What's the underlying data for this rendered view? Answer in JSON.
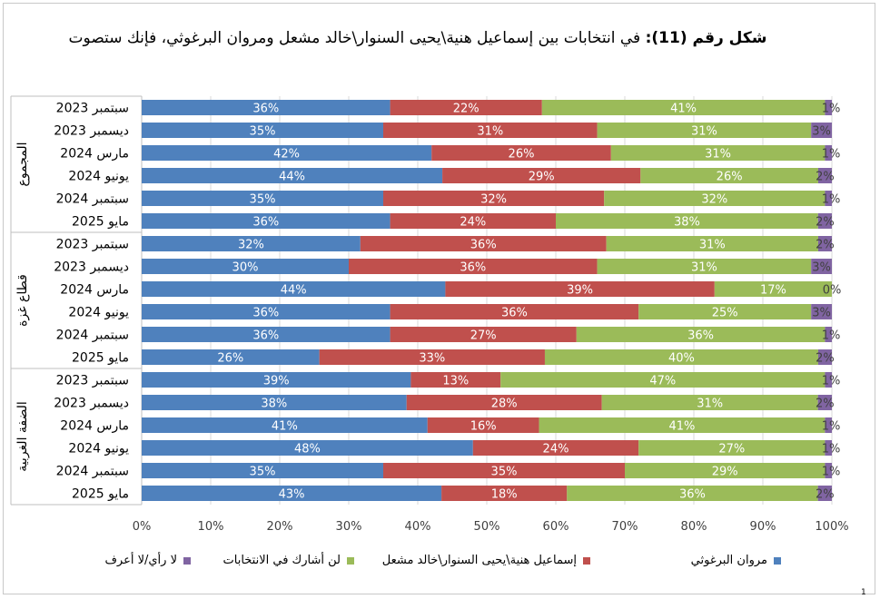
{
  "title": {
    "lead": "شكل رقم (11):",
    "text": "في انتخابات بين إسماعيل هنية\\يحيى السنوار\\خالد مشعل ومروان البرغوثي، فإنك ستصوت"
  },
  "page_number": "1",
  "chart_data": {
    "type": "bar",
    "orientation": "horizontal",
    "stacked": "percent",
    "xlim": [
      0,
      100
    ],
    "x_ticks": [
      "0%",
      "10%",
      "20%",
      "30%",
      "40%",
      "50%",
      "60%",
      "70%",
      "80%",
      "90%",
      "100%"
    ],
    "grid": true,
    "legend_position": "bottom",
    "groups": [
      {
        "name": "المجموع",
        "rows": [
          {
            "label": "سبتمبر 2023",
            "values": [
              36,
              22,
              41,
              1
            ]
          },
          {
            "label": "ديسمبر 2023",
            "values": [
              35,
              31,
              31,
              3
            ]
          },
          {
            "label": "مارس 2024",
            "values": [
              42,
              26,
              31,
              1
            ]
          },
          {
            "label": "يونيو 2024",
            "values": [
              44,
              29,
              26,
              2
            ]
          },
          {
            "label": "سبتمبر 2024",
            "values": [
              35,
              32,
              32,
              1
            ]
          },
          {
            "label": "مايو 2025",
            "values": [
              36,
              24,
              38,
              2
            ]
          }
        ]
      },
      {
        "name": "قطاع غزة",
        "rows": [
          {
            "label": "سبتمبر 2023",
            "values": [
              32,
              36,
              31,
              2
            ]
          },
          {
            "label": "ديسمبر 2023",
            "values": [
              30,
              36,
              31,
              3
            ]
          },
          {
            "label": "مارس 2024",
            "values": [
              44,
              39,
              17,
              0
            ]
          },
          {
            "label": "يونيو 2024",
            "values": [
              36,
              36,
              25,
              3
            ]
          },
          {
            "label": "سبتمبر 2024",
            "values": [
              36,
              27,
              36,
              1
            ]
          },
          {
            "label": "مايو 2025",
            "values": [
              26,
              33,
              40,
              2
            ]
          }
        ]
      },
      {
        "name": "الضفة الغربية",
        "rows": [
          {
            "label": "سبتمبر 2023",
            "values": [
              39,
              13,
              47,
              1
            ]
          },
          {
            "label": "ديسمبر 2023",
            "values": [
              38,
              28,
              31,
              2
            ]
          },
          {
            "label": "مارس 2024",
            "values": [
              41,
              16,
              41,
              1
            ]
          },
          {
            "label": "يونيو 2024",
            "values": [
              48,
              24,
              27,
              1
            ]
          },
          {
            "label": "سبتمبر 2024",
            "values": [
              35,
              35,
              29,
              1
            ]
          },
          {
            "label": "مايو 2025",
            "values": [
              43,
              18,
              36,
              2
            ]
          }
        ]
      }
    ],
    "series": [
      {
        "name": "مروان البرغوثي",
        "color": "#4f81bd"
      },
      {
        "name": "إسماعيل هنية\\يحيى السنوار\\خالد مشعل",
        "color": "#c0504d"
      },
      {
        "name": "لن أشارك في الانتخابات",
        "color": "#9bbb59"
      },
      {
        "name": "لا رأي/لا أعرف",
        "color": "#8064a2"
      }
    ]
  }
}
